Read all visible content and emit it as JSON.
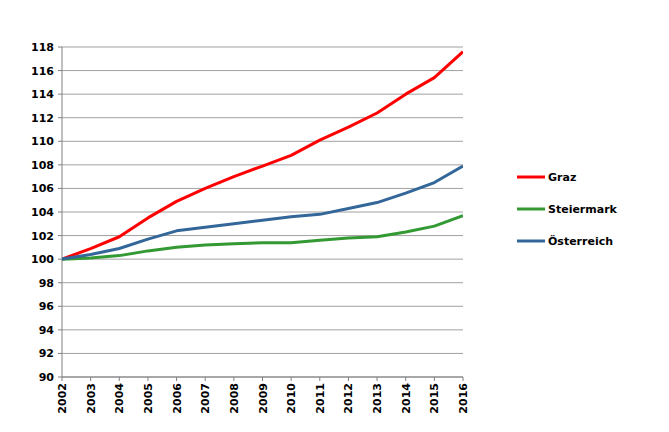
{
  "chart_data": {
    "type": "line",
    "categories": [
      "2002",
      "2003",
      "2004",
      "2005",
      "2006",
      "2007",
      "2008",
      "2009",
      "2010",
      "2011",
      "2012",
      "2013",
      "2014",
      "2015",
      "2016"
    ],
    "series": [
      {
        "name": "Graz",
        "color": "#ff0000",
        "values": [
          100,
          100.9,
          101.9,
          103.5,
          104.9,
          106.0,
          107.0,
          107.9,
          108.8,
          110.1,
          111.2,
          112.4,
          114.0,
          115.4,
          117.6
        ]
      },
      {
        "name": "Steiermark",
        "color": "#339933",
        "values": [
          100,
          100.1,
          100.3,
          100.7,
          101.0,
          101.2,
          101.3,
          101.4,
          101.4,
          101.6,
          101.8,
          101.9,
          102.3,
          102.8,
          103.7
        ]
      },
      {
        "name": "Österreich",
        "color": "#336699",
        "values": [
          100,
          100.4,
          100.9,
          101.7,
          102.4,
          102.7,
          103.0,
          103.3,
          103.6,
          103.8,
          104.3,
          104.8,
          105.6,
          106.5,
          107.9
        ]
      }
    ],
    "ylim": [
      90,
      118
    ],
    "yticks": [
      90,
      92,
      94,
      96,
      98,
      100,
      102,
      104,
      106,
      108,
      110,
      112,
      114,
      116,
      118
    ],
    "grid": true,
    "legend": "right"
  }
}
